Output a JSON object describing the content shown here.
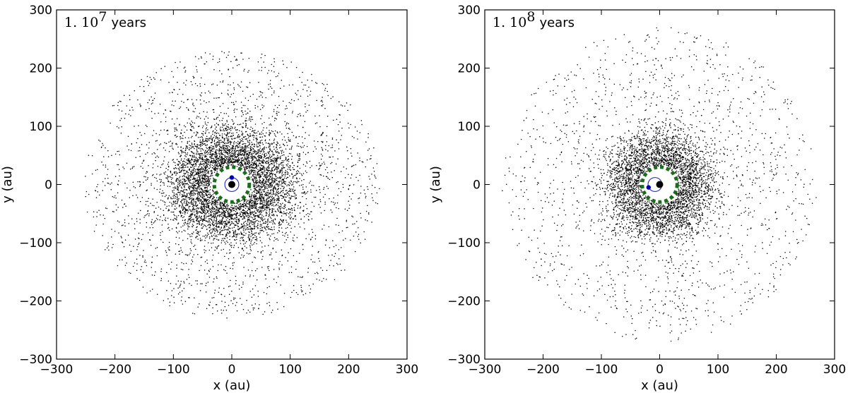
{
  "chart_data": [
    {
      "type": "scatter",
      "annotation": {
        "mantissa": "1. 10",
        "exponent": "7",
        "unit": "years"
      },
      "xlabel": "x (au)",
      "ylabel": "y (au)",
      "xlim": [
        -300,
        300
      ],
      "ylim": [
        -300,
        300
      ],
      "xticks": [
        -300,
        -200,
        -100,
        0,
        100,
        200,
        300
      ],
      "yticks": [
        -300,
        -200,
        -100,
        0,
        100,
        200,
        300
      ],
      "xtick_labels": [
        "−300",
        "−200",
        "−100",
        "0",
        "100",
        "200",
        "300"
      ],
      "ytick_labels": [
        "−300",
        "−200",
        "−100",
        "0",
        "100",
        "200",
        "300"
      ],
      "particles": {
        "count": 6500,
        "inner_radius_au": 30,
        "peak_radius_au": 60,
        "outer_radius_au": 230,
        "x_stretch": 1.1,
        "color": "#000000"
      },
      "planetesimal_ring": {
        "radius_au": 30,
        "color": "#1a6e1a"
      },
      "star": {
        "x": 0,
        "y": 0,
        "color": "#000000"
      },
      "planet": {
        "x": 0,
        "y": 12,
        "color": "#0000bb"
      },
      "planet_orbit": {
        "center_x": 0,
        "center_y": 0,
        "radius_au": 12,
        "color": "#1414cc"
      },
      "grid": false
    },
    {
      "type": "scatter",
      "annotation": {
        "mantissa": "1. 10",
        "exponent": "8",
        "unit": "years"
      },
      "xlabel": "x (au)",
      "ylabel": "y (au)",
      "xlim": [
        -300,
        300
      ],
      "ylim": [
        -300,
        300
      ],
      "xticks": [
        -300,
        -200,
        -100,
        0,
        100,
        200,
        300
      ],
      "yticks": [
        -300,
        -200,
        -100,
        0,
        100,
        200,
        300
      ],
      "xtick_labels": [
        "−300",
        "−200",
        "−100",
        "0",
        "100",
        "200",
        "300"
      ],
      "ytick_labels": [
        "−300",
        "−200",
        "−100",
        "0",
        "100",
        "200",
        "300"
      ],
      "particles": {
        "count": 5000,
        "inner_radius_au": 30,
        "peak_radius_au": 55,
        "outer_radius_au": 270,
        "x_stretch": 1.0,
        "color": "#000000"
      },
      "planetesimal_ring": {
        "radius_au": 30,
        "color": "#1a6e1a"
      },
      "star": {
        "x": 0,
        "y": 0,
        "color": "#000000"
      },
      "planet": {
        "x": -19,
        "y": -5,
        "color": "#0000bb"
      },
      "planet_orbit": {
        "center_x": -8,
        "center_y": 0,
        "radius_au": 12,
        "color": "#1414cc"
      },
      "grid": false
    }
  ]
}
